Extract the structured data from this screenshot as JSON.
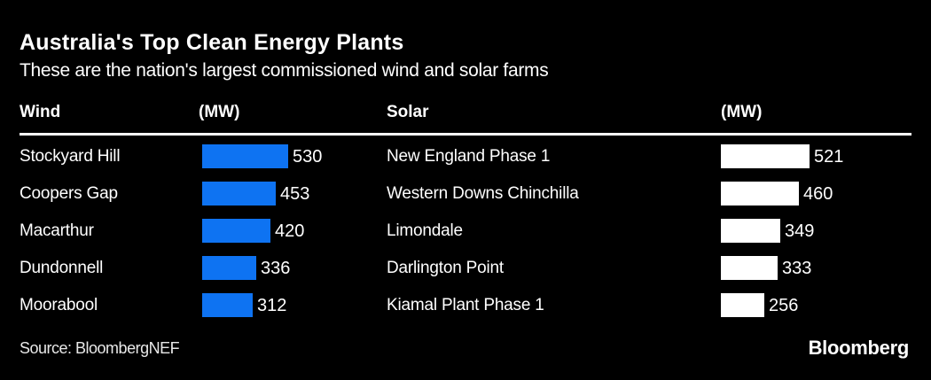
{
  "chart_data": {
    "type": "bar",
    "orientation": "horizontal",
    "title": "Australia's Top Clean Energy Plants",
    "subtitle": "These are the nation's largest commissioned wind and solar farms",
    "source": "Source: BloombergNEF",
    "brand": "Bloomberg",
    "background_color": "#000000",
    "text_color": "#ffffff",
    "grid": false,
    "legend": false,
    "columns": [
      {
        "header": "Wind",
        "unit_header": "(MW)",
        "unit": "MW",
        "bar_color": "#0e73f2",
        "categories": [
          "Stockyard Hill",
          "Coopers Gap",
          "Macarthur",
          "Dundonnell",
          "Moorabool"
        ],
        "values": [
          530,
          453,
          420,
          336,
          312
        ]
      },
      {
        "header": "Solar",
        "unit_header": "(MW)",
        "unit": "MW",
        "bar_color": "#ffffff",
        "categories": [
          "New England Phase 1",
          "Western Downs Chinchilla",
          "Limondale",
          "Darlington Point",
          "Kiamal Plant Phase 1"
        ],
        "values": [
          521,
          460,
          349,
          333,
          256
        ]
      }
    ]
  }
}
